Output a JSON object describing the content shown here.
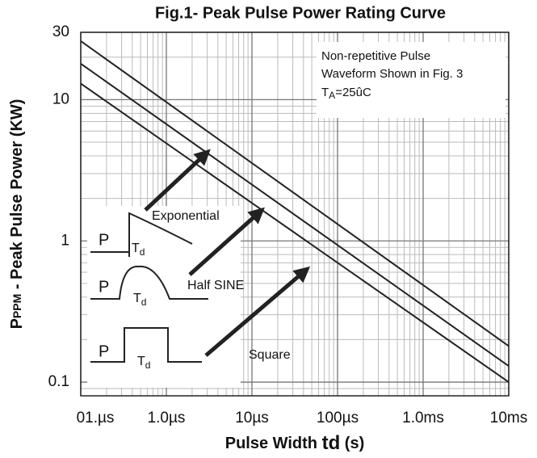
{
  "chart_data": {
    "type": "line",
    "title": "Fig.1- Peak Pulse Power Rating Curve",
    "x_label": {
      "main": "Pulse Width ",
      "var": "td",
      "unit": " (s)"
    },
    "y_label": {
      "first": "P",
      "sub": "PPM",
      "rest": " - Peak Pulse Power (KW)"
    },
    "log_x": true,
    "log_y": true,
    "grid": true,
    "xlim": [
      1e-07,
      0.01
    ],
    "xticks": [
      {
        "value": 1e-07,
        "label": "01.µs"
      },
      {
        "value": 1e-06,
        "label": "1.0µs"
      },
      {
        "value": 1e-05,
        "label": "10µs"
      },
      {
        "value": 0.0001,
        "label": "100µs"
      },
      {
        "value": 0.001,
        "label": "1.0ms"
      },
      {
        "value": 0.01,
        "label": "10ms"
      }
    ],
    "ylim": [
      0.08,
      30
    ],
    "yticks": [
      0.1,
      1,
      10,
      30
    ],
    "series": [
      {
        "color": "#222222",
        "x": [
          1e-07,
          0.01
        ],
        "values": [
          26,
          0.18
        ]
      },
      {
        "color": "#222222",
        "x": [
          1e-07,
          0.01
        ],
        "values": [
          18,
          0.13
        ]
      },
      {
        "color": "#222222",
        "x": [
          1e-07,
          0.01
        ],
        "values": [
          13,
          0.1
        ]
      }
    ],
    "note": {
      "line1": "Non-repetitive Pulse",
      "line2": "Waveform Shown in Fig. 3",
      "t": "T",
      "t_sub": "A",
      "t_rest": "=25ûC"
    },
    "waveforms": {
      "p": "P",
      "t": "T",
      "t_sub": "d",
      "exponential": "Exponential",
      "half_sine": "Half SINE",
      "square": "Square"
    }
  }
}
